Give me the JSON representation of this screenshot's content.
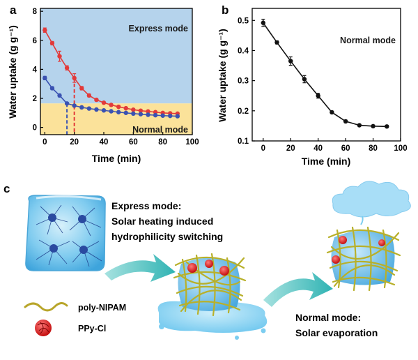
{
  "panels": {
    "a": "a",
    "b": "b",
    "c": "c"
  },
  "chart_data": [
    {
      "type": "line",
      "panel": "a",
      "title": "",
      "xlabel": "Time (min)",
      "ylabel": "Water uptake (g g⁻¹)",
      "xlim": [
        -3,
        100
      ],
      "ylim": [
        -0.5,
        8.2
      ],
      "xticks": [
        0,
        20,
        40,
        60,
        80,
        100
      ],
      "yticks": [
        0,
        2,
        4,
        6,
        8
      ],
      "grid": false,
      "regions": [
        {
          "label": "Express mode",
          "y_from": 1.65,
          "y_to": 8.2,
          "color": "#b5d3ec"
        },
        {
          "label": "Normal mode",
          "y_from": -0.5,
          "y_to": 1.65,
          "color": "#fbe29a"
        }
      ],
      "markers": [
        {
          "x": 15,
          "y_top": 1.65,
          "color": "#3a52b2"
        },
        {
          "x": 20,
          "y_top": 3.4,
          "color": "#e23a3a"
        }
      ],
      "series": [
        {
          "color": "#e23a3a",
          "x": [
            0,
            5,
            10,
            15,
            20,
            25,
            30,
            35,
            40,
            45,
            50,
            55,
            60,
            65,
            70,
            75,
            80,
            85,
            90
          ],
          "y": [
            6.7,
            5.8,
            4.9,
            4.1,
            3.4,
            2.7,
            2.2,
            1.9,
            1.7,
            1.55,
            1.42,
            1.32,
            1.22,
            1.15,
            1.1,
            1.05,
            1.0,
            0.97,
            0.95
          ],
          "err": [
            0.15,
            0.12,
            0.35,
            0.15,
            0.3,
            0.12,
            0.1,
            0.08,
            0.08,
            0.07,
            0.07,
            0.07,
            0.07,
            0.06,
            0.06,
            0.06,
            0.06,
            0.06,
            0.06
          ]
        },
        {
          "color": "#3a52b2",
          "x": [
            0,
            5,
            10,
            15,
            20,
            25,
            30,
            35,
            40,
            45,
            50,
            55,
            60,
            65,
            70,
            75,
            80,
            85,
            90
          ],
          "y": [
            3.4,
            2.7,
            2.2,
            1.65,
            1.5,
            1.38,
            1.3,
            1.23,
            1.17,
            1.11,
            1.05,
            1.0,
            0.95,
            0.91,
            0.87,
            0.84,
            0.81,
            0.79,
            0.77
          ],
          "err": [
            0.12,
            0.1,
            0.1,
            0.08,
            0.07,
            0.06,
            0.06,
            0.06,
            0.05,
            0.05,
            0.05,
            0.05,
            0.05,
            0.05,
            0.05,
            0.05,
            0.05,
            0.05,
            0.05
          ]
        }
      ]
    },
    {
      "type": "line",
      "panel": "b",
      "title": "",
      "xlabel": "Time (min)",
      "ylabel": "Water uptake (g g⁻¹)",
      "annotation": "Normal mode",
      "xlim": [
        -8,
        100
      ],
      "ylim": [
        0.1,
        0.54
      ],
      "xticks": [
        0,
        20,
        40,
        60,
        80,
        100
      ],
      "yticks": [
        0.1,
        0.2,
        0.3,
        0.4,
        0.5
      ],
      "grid": false,
      "series": [
        {
          "color": "#111111",
          "x": [
            0,
            10,
            20,
            30,
            40,
            50,
            60,
            70,
            80,
            90
          ],
          "y": [
            0.492,
            0.427,
            0.365,
            0.305,
            0.25,
            0.195,
            0.165,
            0.152,
            0.149,
            0.148
          ],
          "err": [
            0.012,
            0.005,
            0.014,
            0.012,
            0.008,
            0.004,
            0.004,
            0.003,
            0.003,
            0.004
          ]
        }
      ]
    }
  ],
  "illustration": {
    "express_title": "Express mode:",
    "express_line2": "Solar heating induced",
    "express_line3": "hydrophilicity  switching",
    "legend_polymer": "poly-NIPAM",
    "legend_ppy": "PPy-Cl",
    "normal_title": "Normal mode:",
    "normal_line2": "Solar evaporation"
  }
}
